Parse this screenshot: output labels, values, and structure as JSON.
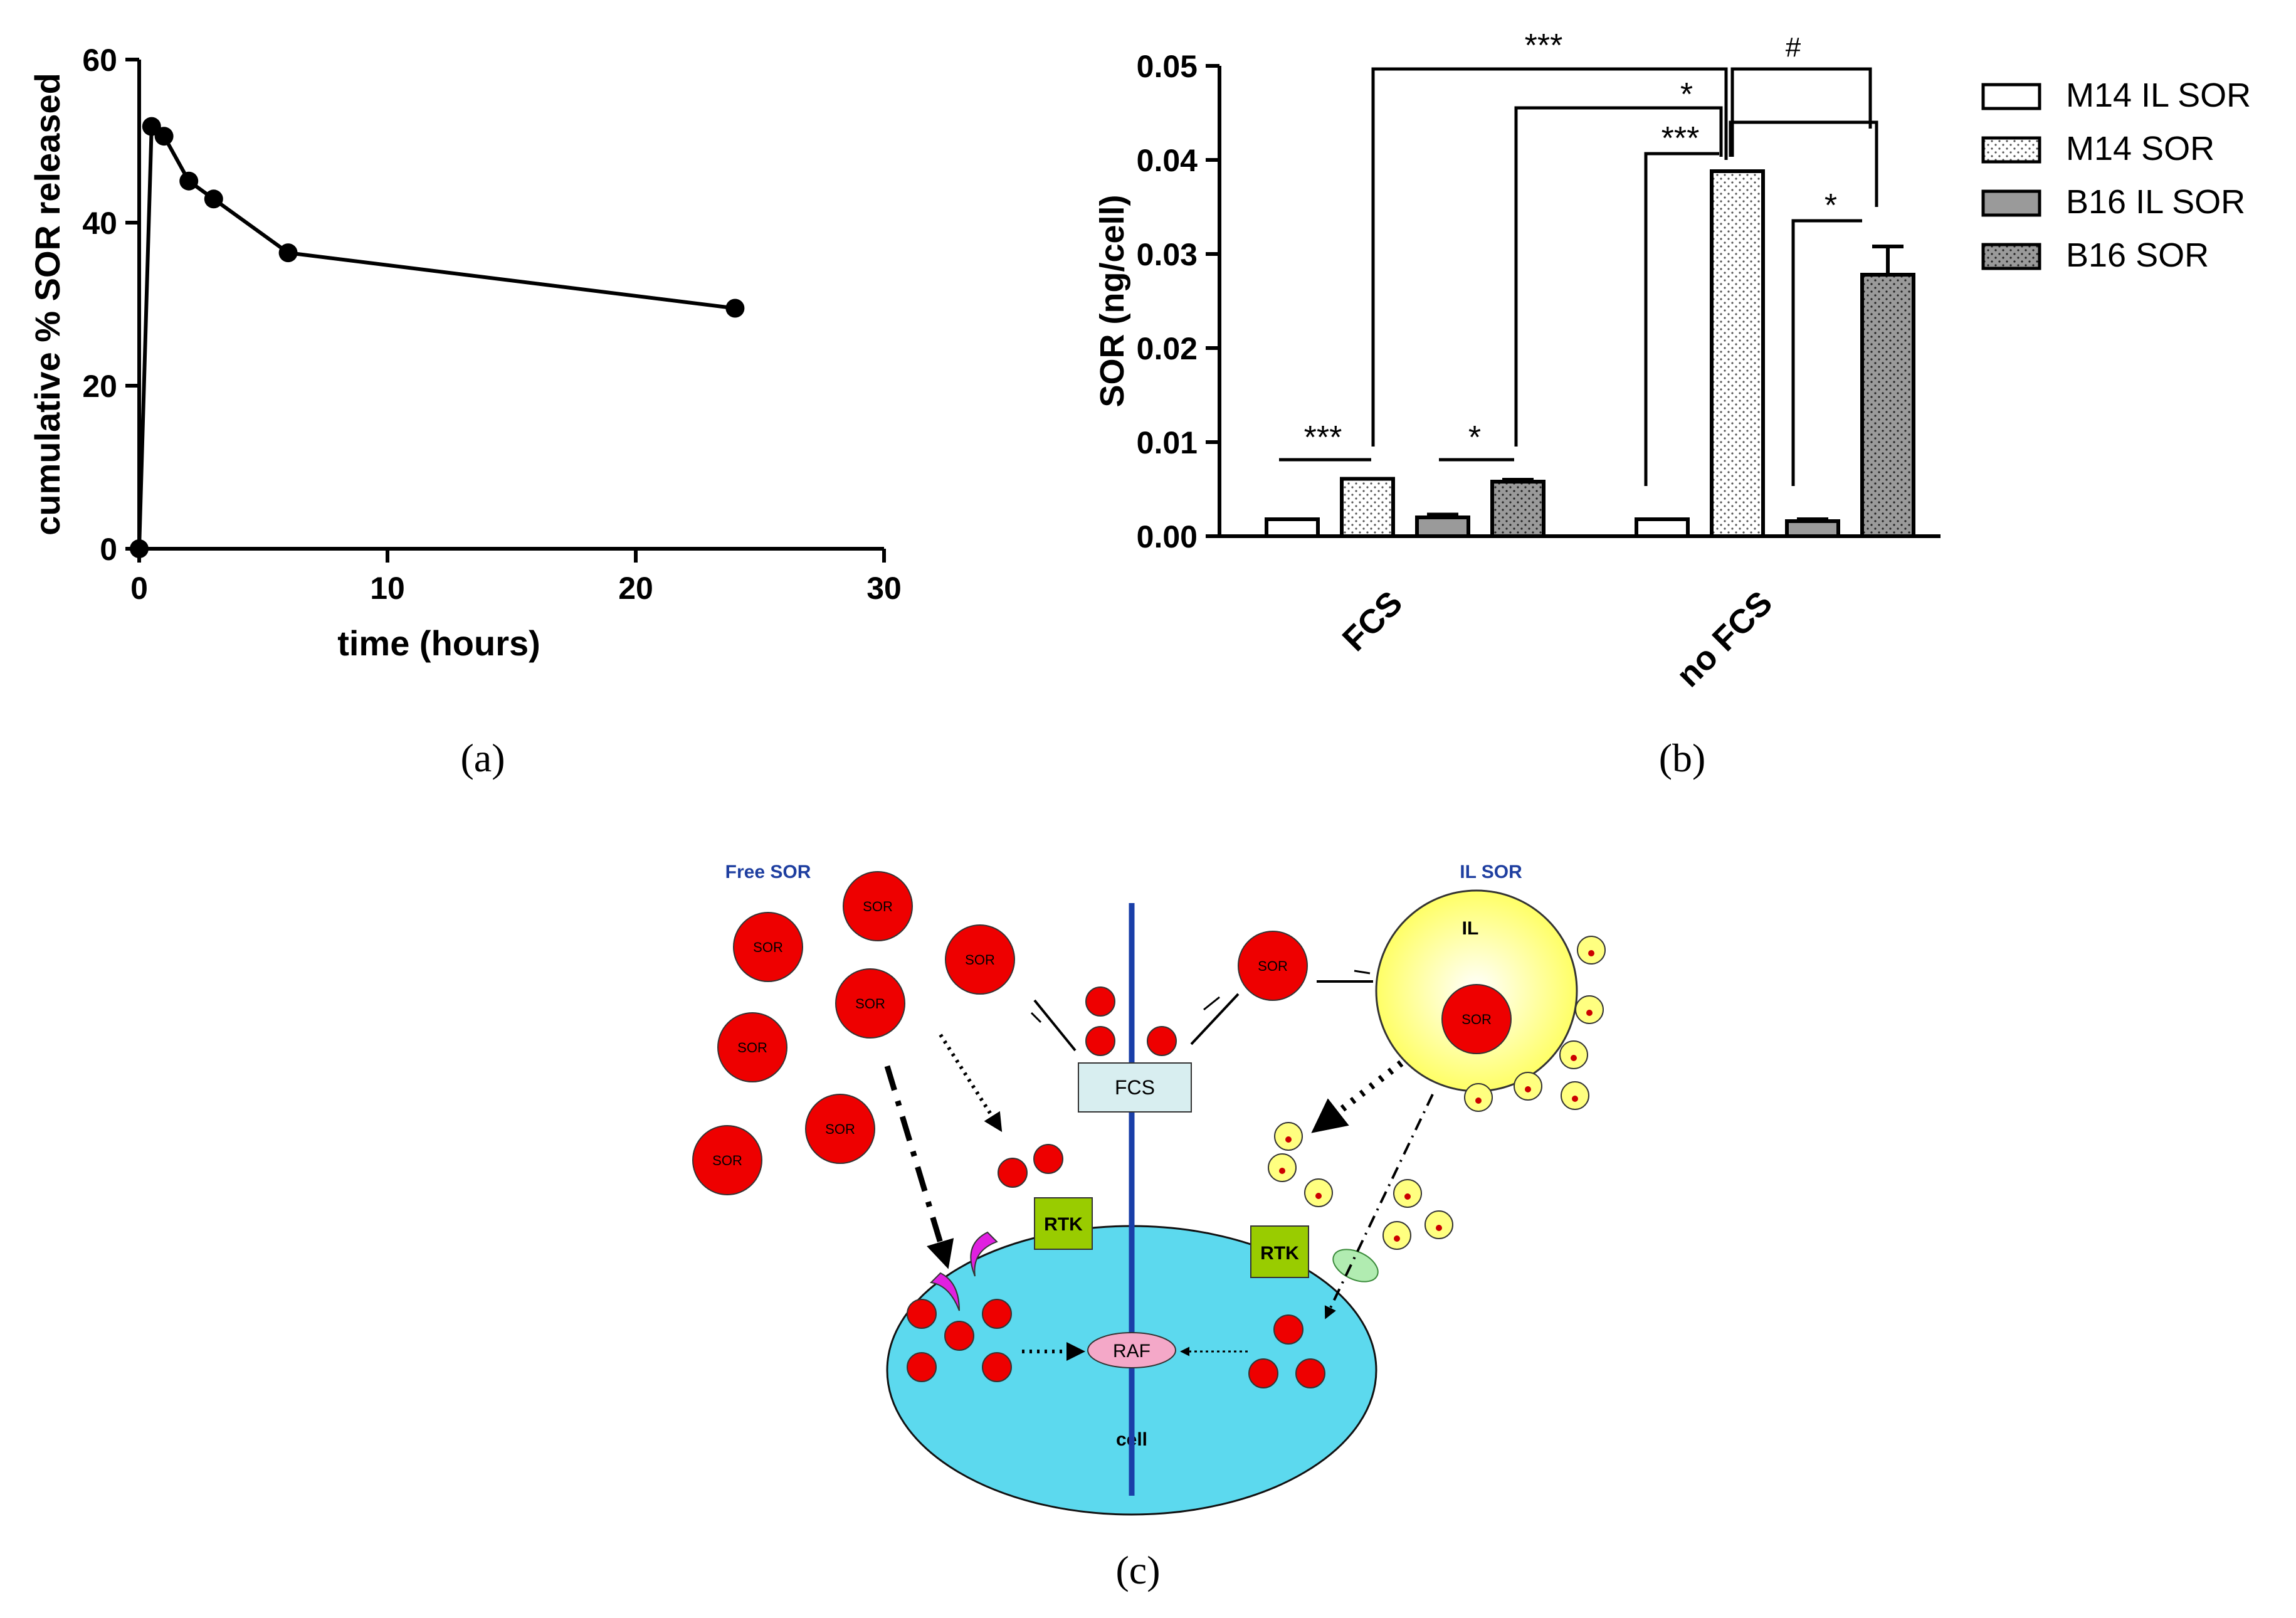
{
  "panel_labels": {
    "a": "(a)",
    "b": "(b)",
    "c": "(c)"
  },
  "chart_data": [
    {
      "type": "line",
      "xlabel": "time (hours)",
      "ylabel": "cumulative % SOR released",
      "xlim": [
        0,
        30
      ],
      "ylim": [
        0,
        60
      ],
      "xticks": [
        0,
        10,
        20,
        30
      ],
      "yticks": [
        0,
        20,
        40,
        60
      ],
      "x": [
        0,
        0.5,
        1,
        2,
        3,
        6,
        24
      ],
      "y": [
        0,
        51.8,
        50.6,
        45.1,
        42.9,
        36.3,
        29.5
      ],
      "grid": false
    },
    {
      "type": "bar",
      "ylabel": "SOR (ng/cell)",
      "ylim": [
        0,
        0.05
      ],
      "yticks": [
        "0.00",
        "0.01",
        "0.02",
        "0.03",
        "0.04",
        "0.05"
      ],
      "categories": [
        "FCS",
        "no FCS"
      ],
      "series": [
        {
          "name": "M14 IL SOR",
          "values": [
            0.0018,
            0.0018
          ],
          "errors": [
            0,
            0
          ],
          "fill": "white"
        },
        {
          "name": "M14 SOR",
          "values": [
            0.0061,
            0.0388
          ],
          "errors": [
            0,
            0
          ],
          "fill": "dots"
        },
        {
          "name": "B16 IL SOR",
          "values": [
            0.002,
            0.0016
          ],
          "errors": [
            0.0003,
            0.0002
          ],
          "fill": "gray"
        },
        {
          "name": "B16 SOR",
          "values": [
            0.0058,
            0.0278
          ],
          "errors": [
            0.0002,
            0.003
          ],
          "fill": "gray-dots"
        }
      ],
      "legend_position": "right",
      "annotations": {
        "fcs_m14": "***",
        "fcs_b16": "*",
        "nofcs_m14": "***",
        "nofcs_b16": "*",
        "m14_fcs_vs_nofcs": "***",
        "b16_fcs_vs_nofcs": "*",
        "m14_vs_b16_nofcs": "#"
      }
    }
  ],
  "diagram": {
    "free_sor_title": "Free SOR",
    "il_sor_title": "IL SOR",
    "sor_label": "SOR",
    "il_label": "IL",
    "fcs_label": "FCS",
    "rtk_label": "RTK",
    "raf_label": "RAF",
    "cell_label": "cell",
    "colors": {
      "sor_red": "#ee0000",
      "il_yellow": "#ffff80",
      "cell_cyan": "#5cd9ee",
      "membrane_blue": "#1a3fa8",
      "rtk_green": "#99cc00",
      "fcs_box": "#d8eef0",
      "raf_pink": "#f4a8c8",
      "title_blue": "#1f3fa0"
    }
  }
}
